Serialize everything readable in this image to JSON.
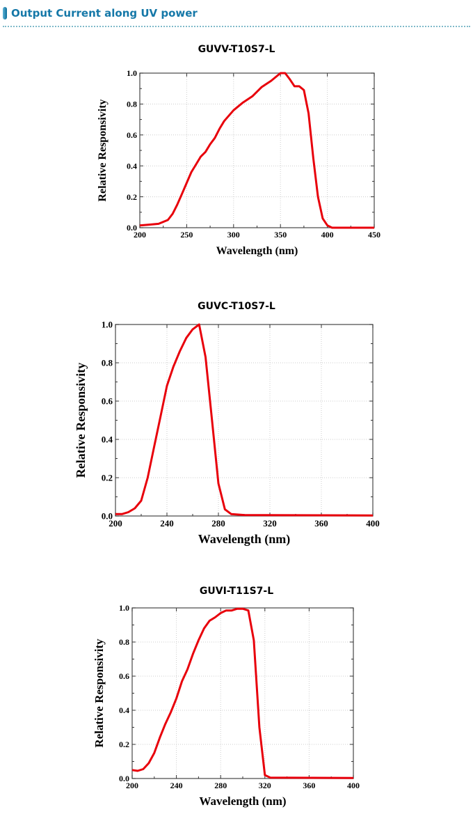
{
  "header": {
    "title": "Output Current along UV power",
    "icon": "blue-bar-icon",
    "accent": "#1578a8"
  },
  "chart_data": [
    {
      "type": "line",
      "title": "GUVV-T10S7-L",
      "xlabel": "Wavelength (nm)",
      "ylabel": "Relative Responsivity",
      "xlim": [
        200,
        450
      ],
      "ylim": [
        0,
        1.0
      ],
      "xticks": [
        "200",
        "250",
        "300",
        "350",
        "400",
        "450"
      ],
      "yticks": [
        "0.0",
        "0.2",
        "0.4",
        "0.6",
        "0.8",
        "1.0"
      ],
      "grid": true,
      "line_color": "#e8000b",
      "x": [
        200,
        210,
        220,
        230,
        235,
        240,
        245,
        250,
        255,
        260,
        265,
        270,
        275,
        280,
        285,
        290,
        300,
        310,
        320,
        330,
        340,
        350,
        355,
        360,
        365,
        370,
        375,
        380,
        385,
        390,
        395,
        400,
        405,
        450
      ],
      "y": [
        0.015,
        0.02,
        0.025,
        0.05,
        0.09,
        0.15,
        0.22,
        0.29,
        0.36,
        0.41,
        0.46,
        0.49,
        0.54,
        0.58,
        0.64,
        0.69,
        0.76,
        0.81,
        0.85,
        0.91,
        0.95,
        1.0,
        1.0,
        0.96,
        0.915,
        0.915,
        0.89,
        0.74,
        0.45,
        0.2,
        0.06,
        0.015,
        0.0,
        0.0
      ]
    },
    {
      "type": "line",
      "title": "GUVC-T10S7-L",
      "xlabel": "Wavelength (nm)",
      "ylabel": "Relative Responsivity",
      "xlim": [
        200,
        400
      ],
      "ylim": [
        0,
        1.0
      ],
      "xticks": [
        "200",
        "240",
        "280",
        "320",
        "360",
        "400"
      ],
      "yticks": [
        "0.0",
        "0.2",
        "0.4",
        "0.6",
        "0.8",
        "1.0"
      ],
      "grid": true,
      "line_color": "#e8000b",
      "x": [
        200,
        205,
        210,
        215,
        220,
        225,
        230,
        235,
        240,
        245,
        250,
        255,
        260,
        265,
        270,
        275,
        280,
        285,
        290,
        300,
        400
      ],
      "y": [
        0.01,
        0.01,
        0.02,
        0.04,
        0.08,
        0.2,
        0.36,
        0.52,
        0.68,
        0.78,
        0.86,
        0.93,
        0.975,
        1.0,
        0.83,
        0.5,
        0.17,
        0.035,
        0.01,
        0.005,
        0.003
      ]
    },
    {
      "type": "line",
      "title": "GUVI-T11S7-L",
      "xlabel": "Wavelength (nm)",
      "ylabel": "Relative Responsivity",
      "xlim": [
        200,
        400
      ],
      "ylim": [
        0,
        1.0
      ],
      "xticks": [
        "200",
        "240",
        "280",
        "320",
        "360",
        "400"
      ],
      "yticks": [
        "0.0",
        "0.2",
        "0.4",
        "0.6",
        "0.8",
        "1.0"
      ],
      "grid": true,
      "line_color": "#e8000b",
      "x": [
        200,
        205,
        210,
        215,
        220,
        225,
        230,
        235,
        240,
        245,
        250,
        255,
        260,
        265,
        270,
        275,
        280,
        285,
        290,
        295,
        300,
        305,
        310,
        315,
        320,
        325,
        400
      ],
      "y": [
        0.05,
        0.045,
        0.055,
        0.09,
        0.15,
        0.24,
        0.32,
        0.39,
        0.47,
        0.57,
        0.64,
        0.73,
        0.81,
        0.88,
        0.925,
        0.945,
        0.97,
        0.985,
        0.985,
        0.995,
        0.995,
        0.985,
        0.81,
        0.3,
        0.02,
        0.005,
        0.003
      ]
    }
  ]
}
